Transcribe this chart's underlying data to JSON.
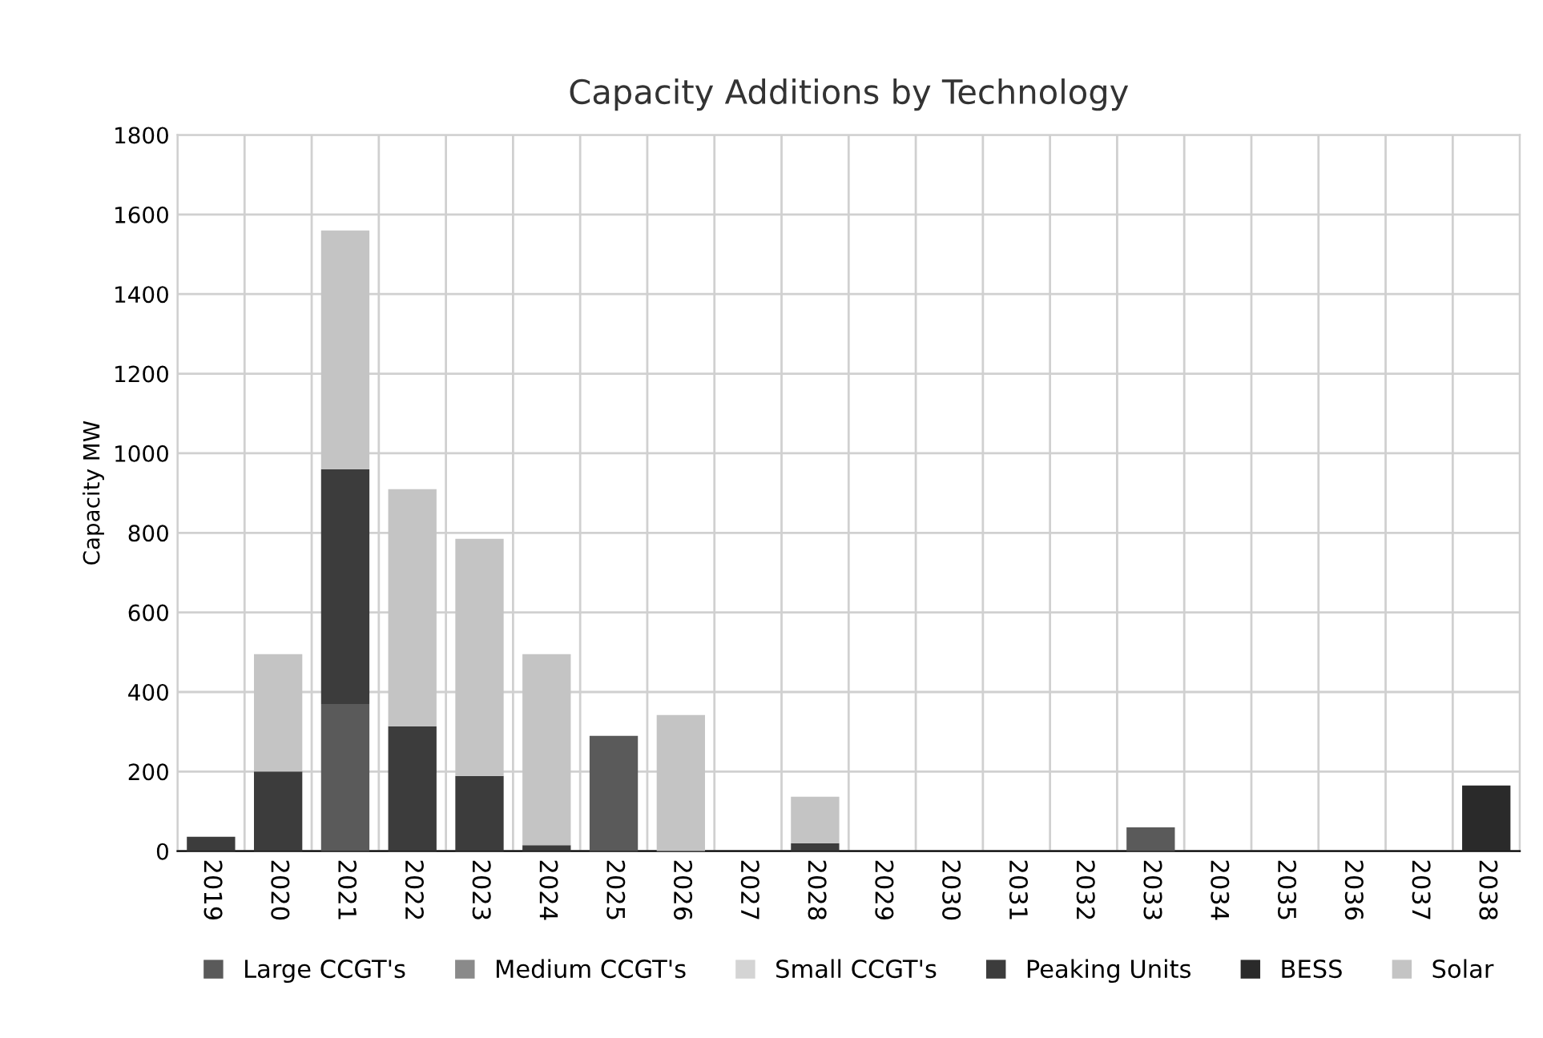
{
  "chart_data": {
    "type": "bar",
    "title": "Capacity Additions by Technology",
    "ylabel": "Capacity MW",
    "stacked": true,
    "categories": [
      "2019",
      "2020",
      "2021",
      "2022",
      "2023",
      "2024",
      "2025",
      "2026",
      "2027",
      "2028",
      "2029",
      "2030",
      "2031",
      "2032",
      "2033",
      "2034",
      "2035",
      "2036",
      "2037",
      "2038"
    ],
    "series": [
      {
        "name": "Large CCGT's",
        "color": "#5a5a5a",
        "values": [
          0,
          0,
          370,
          0,
          0,
          0,
          290,
          0,
          0,
          0,
          0,
          0,
          0,
          0,
          60,
          0,
          0,
          0,
          0,
          0
        ]
      },
      {
        "name": "Medium CCGT's",
        "color": "#8a8a8a",
        "values": [
          0,
          0,
          0,
          0,
          0,
          0,
          0,
          0,
          0,
          0,
          0,
          0,
          0,
          0,
          0,
          0,
          0,
          0,
          0,
          0
        ]
      },
      {
        "name": "Small CCGT's",
        "color": "#d4d4d4",
        "values": [
          0,
          0,
          0,
          0,
          0,
          0,
          0,
          0,
          0,
          0,
          0,
          0,
          0,
          0,
          0,
          0,
          0,
          0,
          0,
          0
        ]
      },
      {
        "name": "Peaking Units",
        "color": "#3c3c3c",
        "values": [
          36,
          200,
          590,
          314,
          189,
          15,
          0,
          0,
          0,
          20,
          0,
          0,
          0,
          0,
          0,
          0,
          0,
          0,
          0,
          0
        ]
      },
      {
        "name": "BESS",
        "color": "#2a2a2a",
        "values": [
          0,
          0,
          0,
          0,
          0,
          0,
          0,
          0,
          0,
          0,
          0,
          0,
          0,
          0,
          0,
          0,
          0,
          0,
          0,
          165
        ]
      },
      {
        "name": "Solar",
        "color": "#c4c4c4",
        "values": [
          0,
          295,
          600,
          596,
          596,
          480,
          0,
          342,
          0,
          117,
          0,
          0,
          0,
          0,
          0,
          0,
          0,
          0,
          0,
          0
        ]
      }
    ],
    "ylim": [
      0,
      1800
    ],
    "yticks": [
      0,
      200,
      400,
      600,
      800,
      1000,
      1200,
      1400,
      1600,
      1800
    ],
    "grid": true,
    "legend": "bottom"
  }
}
